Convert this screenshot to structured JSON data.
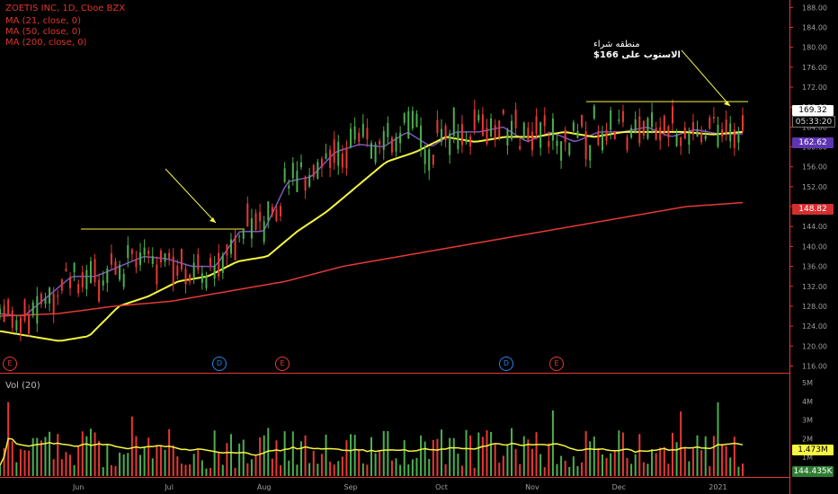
{
  "header": {
    "symbol_line": "ZOETIS INC, 1D, Cboe BZX",
    "ma_lines": [
      "MA (21, close, 0)",
      "MA (50, close, 0)",
      "MA (200, close, 0)"
    ]
  },
  "volume_panel": {
    "title": "Vol (20)"
  },
  "annotation": {
    "line1": "منطقه شراء",
    "line2": "الاستوب على 166$"
  },
  "price_labels": {
    "last": "169.32",
    "countdown": "05:33:20",
    "ma21": "162.62",
    "ma200": "148.82",
    "vol_ma": "1.473M",
    "vol_last": "144.435K"
  },
  "events": [
    {
      "label": "E",
      "kind": "earnings"
    },
    {
      "label": "D",
      "kind": "dividend"
    },
    {
      "label": "E",
      "kind": "earnings"
    },
    {
      "label": "D",
      "kind": "dividend"
    },
    {
      "label": "E",
      "kind": "earnings"
    }
  ],
  "colors": {
    "up": "#4caf50",
    "down": "#e53935",
    "ma21": "#7e57c2",
    "ma50": "#f5f542",
    "ma200": "#e53935",
    "level": "#f5f542"
  },
  "chart_data": {
    "type": "line",
    "title": "ZOETIS INC, 1D, Cboe BZX",
    "x_ticks": [
      "Jun",
      "Jul",
      "Aug",
      "Sep",
      "Oct",
      "Nov",
      "Dec",
      "2021"
    ],
    "y_ticks": [
      116,
      120,
      124,
      128,
      132,
      136,
      140,
      144,
      148,
      152,
      156,
      160,
      164,
      168,
      172,
      176,
      180,
      184,
      188
    ],
    "ylim": [
      115,
      189.5
    ],
    "vol_ticks": [
      "5M",
      "4M",
      "3M",
      "2M",
      "1M"
    ],
    "vol_ylim": [
      0,
      5.3
    ],
    "x_months": [
      {
        "label": "Jun",
        "start": "2020-06-01"
      },
      {
        "label": "Jul",
        "start": "2020-07-01"
      },
      {
        "label": "Aug",
        "start": "2020-08-03"
      },
      {
        "label": "Sep",
        "start": "2020-09-01"
      },
      {
        "label": "Oct",
        "start": "2020-10-01"
      },
      {
        "label": "Nov",
        "start": "2020-11-02"
      },
      {
        "label": "Dec",
        "start": "2020-12-01"
      },
      {
        "label": "2021",
        "start": "2021-01-04"
      }
    ],
    "series": [
      {
        "name": "MA (21, close, 0)",
        "points": [
          [
            126.5,
            126
          ],
          [
            130,
            134
          ],
          [
            134,
            136
          ],
          [
            138,
            137.5
          ],
          [
            136,
            136
          ],
          [
            143,
            143
          ],
          [
            153,
            154
          ],
          [
            159,
            160.5
          ],
          [
            160,
            163
          ],
          [
            160,
            163
          ],
          [
            163,
            164
          ],
          [
            161,
            163
          ],
          [
            161,
            163
          ],
          [
            163,
            164
          ],
          [
            162,
            163.5
          ],
          [
            162.6,
            162.6
          ]
        ]
      },
      {
        "name": "MA (50, close, 0)",
        "points": [
          [
            123,
            122
          ],
          [
            121,
            122
          ],
          [
            128,
            130
          ],
          [
            133,
            134
          ],
          [
            137,
            138
          ],
          [
            143,
            147
          ],
          [
            152,
            157
          ],
          [
            159,
            162
          ],
          [
            161,
            162
          ],
          [
            162,
            163
          ],
          [
            162,
            163
          ],
          [
            163,
            163
          ],
          [
            162.5,
            163
          ]
        ]
      },
      {
        "name": "MA (200, close, 0)",
        "points": [
          [
            126,
            126.5
          ],
          [
            128,
            129
          ],
          [
            131,
            133
          ],
          [
            136,
            138
          ],
          [
            140,
            142
          ],
          [
            144,
            146
          ],
          [
            148,
            148.8
          ]
        ]
      }
    ],
    "resistance_levels": [
      {
        "price": 143.5
      },
      {
        "price": 169.1
      }
    ],
    "last_price": 169.32
  }
}
